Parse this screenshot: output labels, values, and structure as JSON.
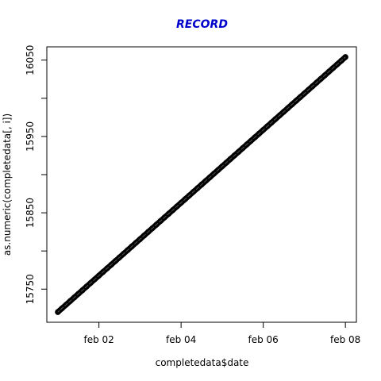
{
  "chart_data": {
    "type": "scatter",
    "title": "RECORD",
    "title_color": "#0000CD",
    "xlabel": "completedata$date",
    "ylabel": "as.numeric(completedata[, i])",
    "x_ticks": [
      "feb 02",
      "feb 04",
      "feb 06",
      "feb 08"
    ],
    "x_tick_values": [
      "2014-02-02",
      "2014-02-04",
      "2014-02-06",
      "2014-02-08"
    ],
    "y_ticks": [
      15750,
      15850,
      15950,
      16050
    ],
    "x_range": [
      "2014-02-01",
      "2014-02-08"
    ],
    "y_range": [
      15720,
      16054
    ],
    "xlim": [
      "2014-01-31T17:34",
      "2014-02-08T06:25"
    ],
    "ylim": [
      15706.6,
      16067.4
    ],
    "series": [
      {
        "marker": "open-circle",
        "color": "#000000",
        "x_start": "2014-02-01",
        "x_end": "2014-02-08",
        "y_start": 15720,
        "y_end": 16054,
        "points": 10080
      }
    ],
    "grid": false
  }
}
